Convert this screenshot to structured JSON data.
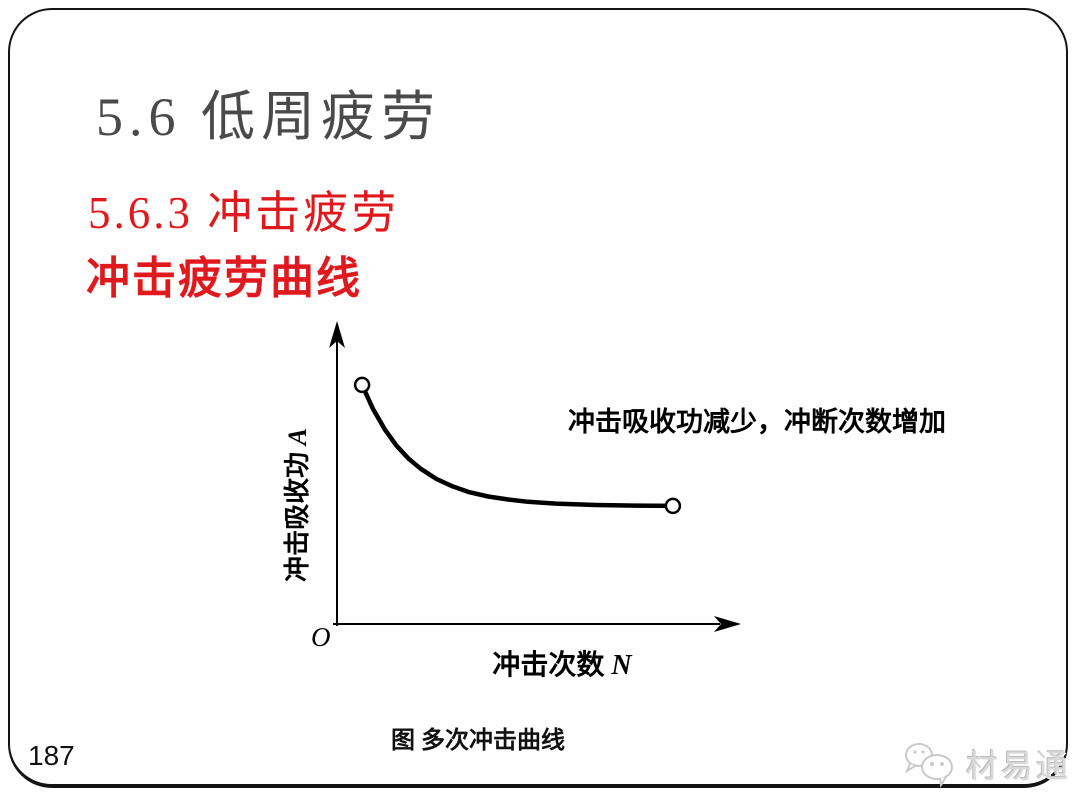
{
  "slide": {
    "page_number": "187",
    "title": "5.6 低周疲劳",
    "subtitle": "5.6.3 冲击疲劳",
    "heading": "冲击疲劳曲线",
    "annotation": "冲击吸收功减少，冲断次数增加",
    "caption": "图 多次冲击曲线",
    "brand_text": "材易通"
  },
  "colors": {
    "accent_red": "#e0191e",
    "title_gray": "#4a4a4a",
    "ink_black": "#000000",
    "watermark_gray": "#d9d9d9"
  },
  "chart_data": {
    "type": "line",
    "title": "图 多次冲击曲线",
    "xlabel": "冲击次数 N",
    "ylabel": "冲击吸收功 A",
    "xlabel_cn": "冲击次数",
    "xlabel_var": "N",
    "ylabel_cn": "冲击吸收功",
    "ylabel_var": "A",
    "origin_label": "O",
    "axes_numeric": false,
    "axis_ticks": "none",
    "grid": "off",
    "legend": "none",
    "marker_style": "open circles at first and last point",
    "x_range_normalized": [
      0,
      1
    ],
    "y_range_normalized": [
      0,
      1
    ],
    "points": [
      [
        0.063,
        0.816
      ],
      [
        0.09,
        0.735
      ],
      [
        0.12,
        0.664
      ],
      [
        0.15,
        0.608
      ],
      [
        0.18,
        0.564
      ],
      [
        0.21,
        0.53
      ],
      [
        0.25,
        0.495
      ],
      [
        0.29,
        0.47
      ],
      [
        0.33,
        0.451
      ],
      [
        0.38,
        0.435
      ],
      [
        0.43,
        0.425
      ],
      [
        0.48,
        0.417
      ],
      [
        0.55,
        0.411
      ],
      [
        0.65,
        0.406
      ],
      [
        0.75,
        0.404
      ],
      [
        0.844,
        0.403
      ]
    ],
    "annotation": "冲击吸收功减少，冲断次数增加"
  }
}
